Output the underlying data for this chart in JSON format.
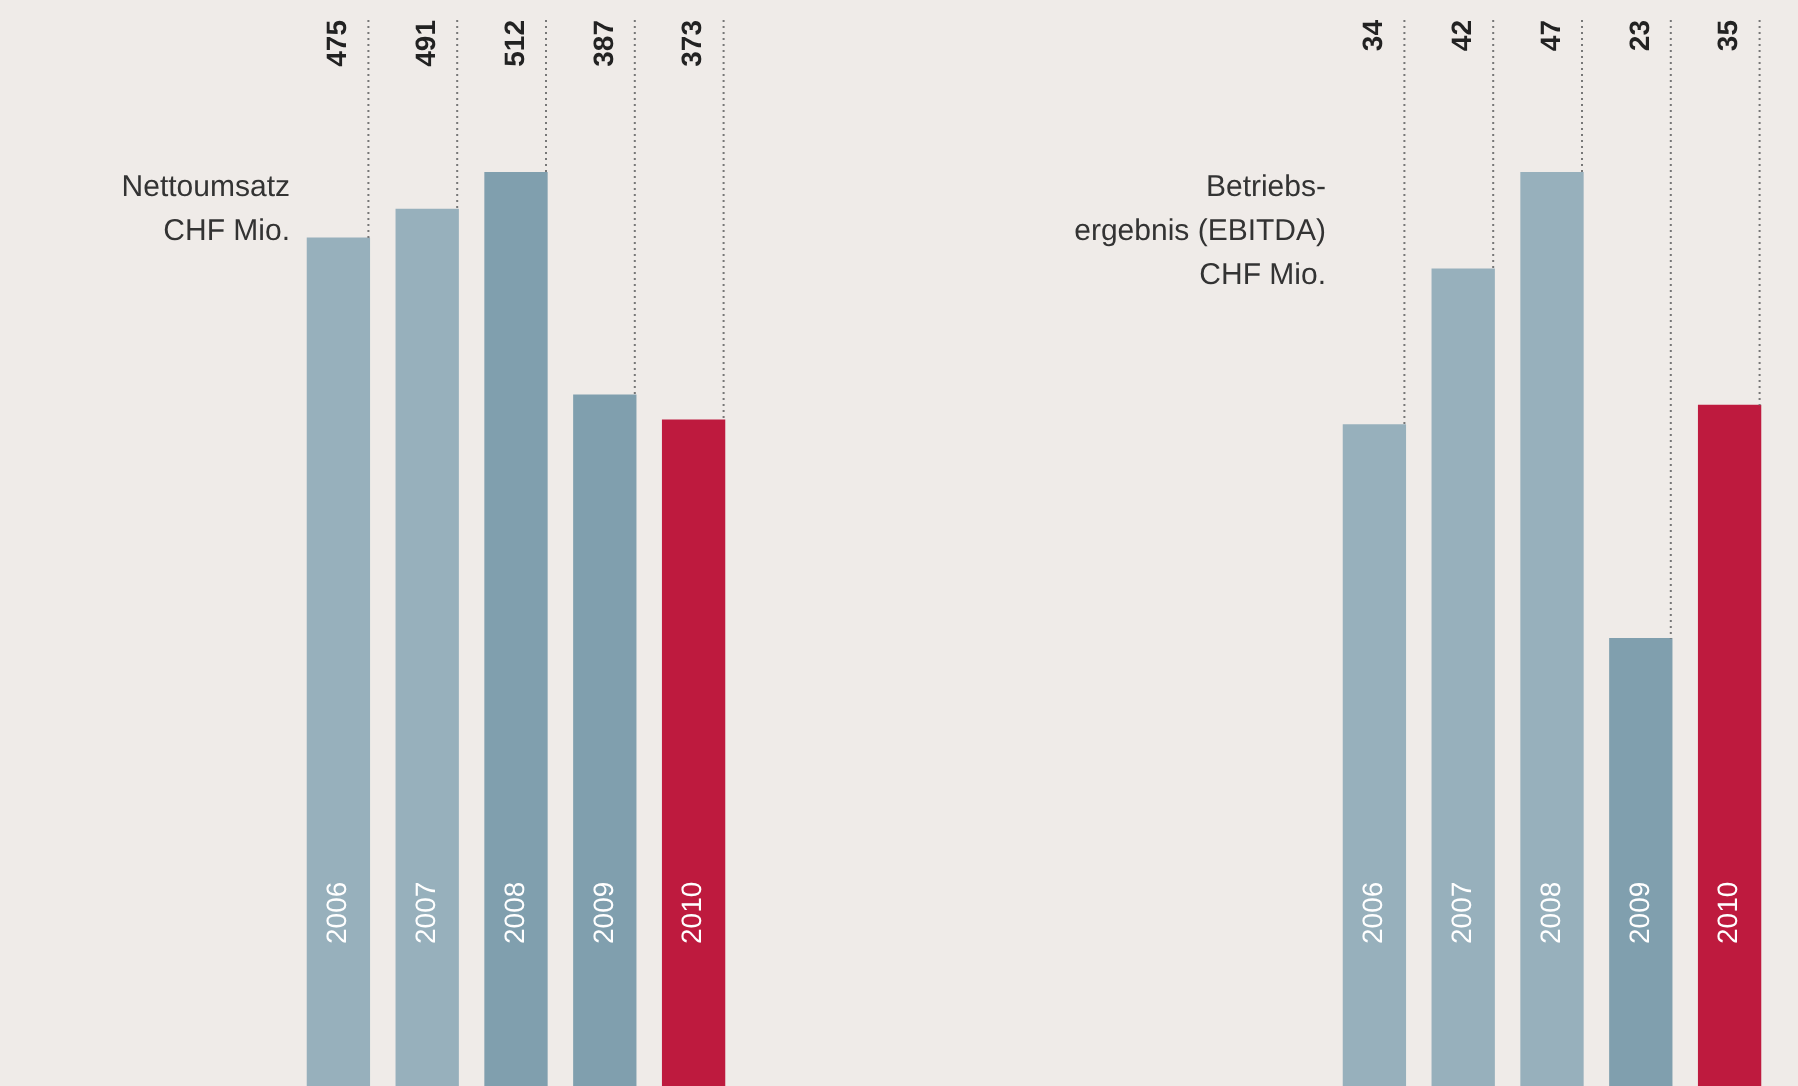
{
  "chart_data": [
    {
      "type": "bar",
      "title": "Nettoumsatz\nCHF Mio.",
      "categories": [
        "2006",
        "2007",
        "2008",
        "2009",
        "2010"
      ],
      "values": [
        475,
        491,
        512,
        387,
        373
      ],
      "colors": [
        "#97b0bc",
        "#97b0bc",
        "#809fae",
        "#809fae",
        "#be1a3e"
      ],
      "data_labels": true
    },
    {
      "type": "bar",
      "title": "Betriebs-\nergebnis (EBITDA)\nCHF Mio.",
      "categories": [
        "2006",
        "2007",
        "2008",
        "2009",
        "2010"
      ],
      "values": [
        34,
        42,
        47,
        23,
        35
      ],
      "colors": [
        "#97b0bc",
        "#97b0bc",
        "#97b0bc",
        "#809fae",
        "#be1a3e"
      ],
      "data_labels": true
    }
  ]
}
